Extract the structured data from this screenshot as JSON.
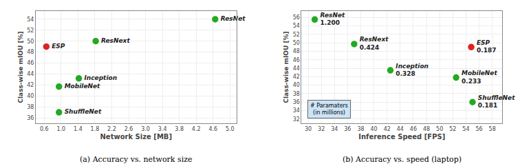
{
  "chart_data": [
    {
      "type": "scatter",
      "title": "(a) Accuracy vs. network size",
      "xlabel": "Network Size [MB]",
      "ylabel": "Class-wise mIOU [%]",
      "labels": [
        "ESP",
        "ResNet",
        "ResNext",
        "Inception",
        "MobileNet",
        "ShuffleNet"
      ],
      "x": [
        0.65,
        4.65,
        1.82,
        1.42,
        0.95,
        0.95
      ],
      "values": [
        49.0,
        54.0,
        50.0,
        43.2,
        41.7,
        37.0
      ],
      "colors": [
        "#dd2222",
        "#22aa22",
        "#22aa22",
        "#22aa22",
        "#22aa22",
        "#22aa22"
      ],
      "xlim": [
        0.4,
        5.15
      ],
      "ylim": [
        35.0,
        55.5
      ],
      "xticks": [
        0.6,
        {
          "value": 1.0,
          "label": "1.0"
        },
        1.4,
        1.8,
        2.2,
        2.6,
        {
          "value": 3.0,
          "label": "3.0"
        },
        3.4,
        3.8,
        4.2,
        4.6,
        {
          "value": 5.0,
          "label": "5.0"
        }
      ],
      "yticks": [
        36,
        38,
        40,
        42,
        44,
        46,
        48,
        50,
        52,
        54
      ],
      "grid": true
    },
    {
      "type": "scatter",
      "title": "(b) Accuracy vs. speed (laptop)",
      "xlabel": "Inference Speed [FPS]",
      "ylabel": "Class-wise mIOU [%]",
      "labels": [
        "ESP",
        "ResNet",
        "ResNext",
        "Inception",
        "MobileNet",
        "ShuffleNet"
      ],
      "x": [
        54.8,
        31.0,
        37.0,
        42.5,
        52.5,
        55.0
      ],
      "values": [
        49.0,
        55.5,
        49.7,
        43.5,
        41.8,
        36.0
      ],
      "params": [
        0.187,
        1.2,
        0.424,
        0.328,
        0.233,
        0.181
      ],
      "params_labels": [
        "0.187",
        "1.200",
        "0.424",
        "0.328",
        "0.233",
        "0.181"
      ],
      "colors": [
        "#dd2222",
        "#22aa22",
        "#22aa22",
        "#22aa22",
        "#22aa22",
        "#22aa22"
      ],
      "annotations": [
        "# Paramaters\n(in millions)"
      ],
      "xlim": [
        29.0,
        59.5
      ],
      "ylim": [
        31.0,
        57.5
      ],
      "xticks": [
        30,
        32,
        34,
        36,
        38,
        40,
        42,
        44,
        46,
        48,
        50,
        52,
        54,
        56,
        58
      ],
      "yticks": [
        32,
        34,
        36,
        38,
        40,
        42,
        44,
        46,
        48,
        50,
        52,
        54,
        56
      ],
      "grid": true
    }
  ]
}
